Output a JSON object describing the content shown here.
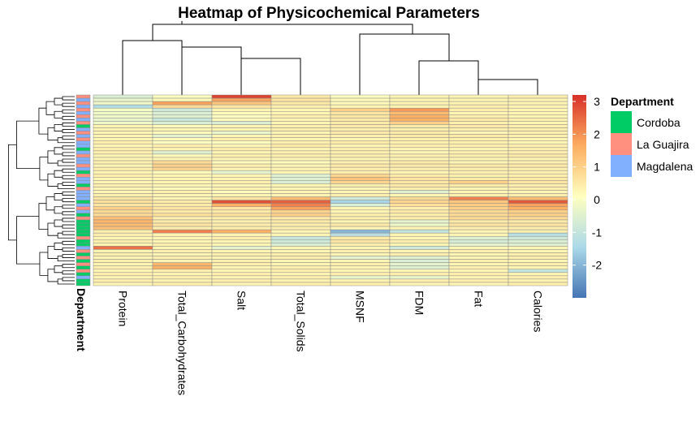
{
  "chart_data": {
    "type": "heatmap",
    "title": "Heatmap of Physicochemical Parameters",
    "columns": [
      "Protein",
      "Total_Carbohydrates",
      "Salt",
      "Total_Solids",
      "MSNF",
      "FDM",
      "Fat",
      "Calories"
    ],
    "row_annotation_label": "Department",
    "color_scale": {
      "min": -3,
      "max": 3.2,
      "ticks": [
        3,
        2,
        1,
        0,
        -1,
        -2
      ],
      "tick_labels": [
        "3",
        "2",
        "1",
        "0",
        "-1",
        "-2"
      ],
      "colors": [
        "#4575b4",
        "#abd9e9",
        "#ffffbf",
        "#fdae61",
        "#d73027"
      ]
    },
    "legend": {
      "title": "Department",
      "placement": "right",
      "items": [
        {
          "label": "Cordoba",
          "color": "#00cc66"
        },
        {
          "label": "La Guajira",
          "color": "#ff9080"
        },
        {
          "label": "Magdalena",
          "color": "#80b0ff"
        }
      ]
    },
    "rows": [
      {
        "department": "La Guajira",
        "values": [
          -0.6,
          0.1,
          3.0,
          0.5,
          0.1,
          0.3,
          0.3,
          0.4
        ]
      },
      {
        "department": "Magdalena",
        "values": [
          -0.3,
          0.2,
          1.8,
          0.6,
          0.2,
          0.3,
          0.3,
          0.3
        ]
      },
      {
        "department": "La Guajira",
        "values": [
          -0.2,
          1.8,
          1.2,
          0.5,
          0.2,
          0.3,
          0.3,
          0.3
        ]
      },
      {
        "department": "Magdalena",
        "values": [
          -1.3,
          0.8,
          0.6,
          0.4,
          0.3,
          0.3,
          0.4,
          0.3
        ]
      },
      {
        "department": "La Guajira",
        "values": [
          -0.1,
          -0.8,
          0.3,
          0.3,
          1.0,
          1.9,
          0.4,
          0.3
        ]
      },
      {
        "department": "Magdalena",
        "values": [
          -0.2,
          -0.6,
          0.2,
          0.3,
          0.6,
          1.4,
          0.3,
          0.3
        ]
      },
      {
        "department": "La Guajira",
        "values": [
          -0.2,
          -0.5,
          0.1,
          0.4,
          0.6,
          1.6,
          0.4,
          0.3
        ]
      },
      {
        "department": "Magdalena",
        "values": [
          -0.3,
          -0.9,
          0.2,
          0.3,
          0.5,
          1.6,
          0.5,
          0.4
        ]
      },
      {
        "department": "La Guajira",
        "values": [
          -0.2,
          -0.6,
          -0.6,
          0.3,
          0.5,
          1.0,
          0.4,
          0.3
        ]
      },
      {
        "department": "Cordoba",
        "values": [
          0.3,
          0.2,
          0.3,
          0.4,
          0.5,
          0.5,
          0.5,
          0.4
        ]
      },
      {
        "department": "Magdalena",
        "values": [
          0.3,
          0.3,
          0.3,
          0.4,
          0.4,
          0.4,
          0.4,
          0.4
        ]
      },
      {
        "department": "La Guajira",
        "values": [
          0.3,
          0.2,
          -0.3,
          0.3,
          0.5,
          0.5,
          0.3,
          0.4
        ]
      },
      {
        "department": "Magdalena",
        "values": [
          0.3,
          -0.4,
          0.3,
          0.4,
          0.4,
          0.5,
          0.5,
          0.4
        ]
      },
      {
        "department": "La Guajira",
        "values": [
          0.3,
          0.2,
          0.4,
          0.3,
          0.3,
          0.4,
          0.4,
          0.3
        ]
      },
      {
        "department": "Magdalena",
        "values": [
          0.4,
          0.1,
          0.1,
          0.4,
          0.5,
          0.4,
          0.4,
          0.3
        ]
      },
      {
        "department": "Magdalena",
        "values": [
          0.3,
          0.4,
          0.3,
          0.5,
          0.3,
          0.4,
          0.4,
          0.4
        ]
      },
      {
        "department": "Cordoba",
        "values": [
          0.4,
          0.3,
          0.4,
          0.3,
          0.4,
          0.3,
          0.3,
          0.4
        ]
      },
      {
        "department": "Magdalena",
        "values": [
          0.4,
          -0.5,
          0.3,
          0.4,
          0.4,
          0.3,
          0.4,
          0.4
        ]
      },
      {
        "department": "La Guajira",
        "values": [
          0.3,
          0.2,
          0.4,
          0.4,
          0.4,
          0.4,
          0.4,
          0.5
        ]
      },
      {
        "department": "Magdalena",
        "values": [
          0.3,
          0.3,
          0.3,
          0.3,
          0.3,
          0.3,
          0.3,
          0.3
        ]
      },
      {
        "department": "Magdalena",
        "values": [
          0.4,
          0.8,
          0.2,
          0.2,
          0.4,
          0.5,
          0.3,
          0.4
        ]
      },
      {
        "department": "La Guajira",
        "values": [
          0.3,
          1.0,
          0.4,
          0.3,
          0.5,
          0.5,
          0.5,
          0.5
        ]
      },
      {
        "department": "Magdalena",
        "values": [
          0.4,
          0.9,
          0.3,
          0.3,
          0.4,
          0.4,
          0.4,
          0.4
        ]
      },
      {
        "department": "Cordoba",
        "values": [
          0.3,
          0.2,
          -0.4,
          0.3,
          0.4,
          0.3,
          0.4,
          0.4
        ]
      },
      {
        "department": "La Guajira",
        "values": [
          0.4,
          0.3,
          0.3,
          -0.5,
          0.9,
          0.5,
          0.4,
          0.4
        ]
      },
      {
        "department": "Magdalena",
        "values": [
          0.3,
          0.3,
          0.3,
          -0.5,
          1.2,
          0.6,
          0.5,
          0.5
        ]
      },
      {
        "department": "Magdalena",
        "values": [
          0.3,
          0.3,
          0.4,
          -0.6,
          0.9,
          0.6,
          1.0,
          0.6
        ]
      },
      {
        "department": "Cordoba",
        "values": [
          0.4,
          0.3,
          0.3,
          0.3,
          0.4,
          0.5,
          0.5,
          0.4
        ]
      },
      {
        "department": "La Guajira",
        "values": [
          0.3,
          0.2,
          0.3,
          0.3,
          0.3,
          0.4,
          0.3,
          0.4
        ]
      },
      {
        "department": "Magdalena",
        "values": [
          0.3,
          0.4,
          0.2,
          0.3,
          0.3,
          -0.5,
          0.3,
          0.3
        ]
      },
      {
        "department": "Magdalena",
        "values": [
          0.4,
          0.3,
          0.3,
          0.3,
          0.4,
          0.3,
          0.4,
          0.4
        ]
      },
      {
        "department": "Magdalena",
        "values": [
          0.6,
          0.3,
          0.6,
          1.4,
          -0.8,
          0.8,
          2.2,
          1.4
        ]
      },
      {
        "department": "Cordoba",
        "values": [
          0.7,
          0.5,
          2.8,
          2.6,
          -1.5,
          0.9,
          1.2,
          2.7
        ]
      },
      {
        "department": "Magdalena",
        "values": [
          0.6,
          0.5,
          1.6,
          2.2,
          -0.6,
          0.7,
          1.1,
          1.8
        ]
      },
      {
        "department": "La Guajira",
        "values": [
          1.0,
          0.6,
          0.6,
          1.8,
          0.3,
          0.4,
          1.0,
          1.6
        ]
      },
      {
        "department": "Magdalena",
        "values": [
          0.8,
          0.5,
          0.5,
          0.9,
          0.3,
          0.5,
          0.8,
          1.0
        ]
      },
      {
        "department": "Cordoba",
        "values": [
          0.8,
          0.7,
          0.7,
          1.0,
          0.4,
          0.4,
          0.8,
          1.0
        ]
      },
      {
        "department": "La Guajira",
        "values": [
          1.3,
          0.4,
          0.4,
          0.5,
          0.4,
          0.4,
          0.8,
          0.8
        ]
      },
      {
        "department": "Cordoba",
        "values": [
          1.5,
          0.5,
          0.4,
          0.5,
          0.3,
          -0.4,
          0.5,
          0.5
        ]
      },
      {
        "department": "Cordoba",
        "values": [
          1.4,
          0.6,
          0.4,
          0.4,
          0.5,
          -0.2,
          0.6,
          0.6
        ]
      },
      {
        "department": "Cordoba",
        "values": [
          1.3,
          0.4,
          0.4,
          0.4,
          0.3,
          0.3,
          0.4,
          0.4
        ]
      },
      {
        "department": "Cordoba",
        "values": [
          0.4,
          2.2,
          1.6,
          0.3,
          -2.0,
          -1.0,
          0.3,
          0.4
        ]
      },
      {
        "department": "Cordoba",
        "values": [
          0.4,
          0.3,
          0.3,
          0.3,
          -1.2,
          0.3,
          0.3,
          -1.2
        ]
      },
      {
        "department": "La Guajira",
        "values": [
          0.3,
          0.3,
          0.4,
          -0.9,
          0.5,
          0.3,
          -0.5,
          -0.8
        ]
      },
      {
        "department": "Cordoba",
        "values": [
          0.4,
          0.3,
          0.3,
          -0.8,
          0.6,
          0.4,
          -0.7,
          -0.6
        ]
      },
      {
        "department": "Cordoba",
        "values": [
          0.3,
          0.4,
          0.3,
          -0.6,
          0.4,
          0.3,
          -0.4,
          -0.5
        ]
      },
      {
        "department": "Magdalena",
        "values": [
          2.4,
          0.3,
          -0.4,
          0.3,
          0.3,
          -0.8,
          0.3,
          0.3
        ]
      },
      {
        "department": "La Guajira",
        "values": [
          0.3,
          0.4,
          0.3,
          0.3,
          0.4,
          0.3,
          0.4,
          0.3
        ]
      },
      {
        "department": "Cordoba",
        "values": [
          0.4,
          0.3,
          0.4,
          0.4,
          0.3,
          0.4,
          0.3,
          0.4
        ]
      },
      {
        "department": "La Guajira",
        "values": [
          0.3,
          0.4,
          0.3,
          0.4,
          -0.4,
          -0.5,
          0.3,
          0.4
        ]
      },
      {
        "department": "Cordoba",
        "values": [
          0.4,
          0.3,
          0.4,
          0.3,
          0.3,
          -0.6,
          0.4,
          0.3
        ]
      },
      {
        "department": "La Guajira",
        "values": [
          0.3,
          1.5,
          0.4,
          0.3,
          0.4,
          -0.4,
          0.3,
          0.4
        ]
      },
      {
        "department": "Cordoba",
        "values": [
          0.4,
          1.6,
          0.3,
          0.4,
          0.3,
          -0.5,
          0.4,
          0.3
        ]
      },
      {
        "department": "La Guajira",
        "values": [
          0.3,
          0.4,
          0.3,
          0.4,
          0.3,
          0.3,
          0.3,
          -1.0
        ]
      },
      {
        "department": "Cordoba",
        "values": [
          0.4,
          0.3,
          0.4,
          0.3,
          0.4,
          0.4,
          0.4,
          0.3
        ]
      },
      {
        "department": "Magdalena",
        "values": [
          0.3,
          0.4,
          0.3,
          0.4,
          -0.3,
          -0.3,
          0.3,
          0.4
        ]
      },
      {
        "department": "Cordoba",
        "values": [
          0.4,
          0.3,
          0.4,
          0.3,
          0.3,
          0.4,
          0.4,
          0.3
        ]
      },
      {
        "department": "Cordoba",
        "values": [
          0.3,
          0.4,
          0.3,
          0.4,
          0.4,
          0.3,
          0.3,
          0.4
        ]
      }
    ]
  }
}
